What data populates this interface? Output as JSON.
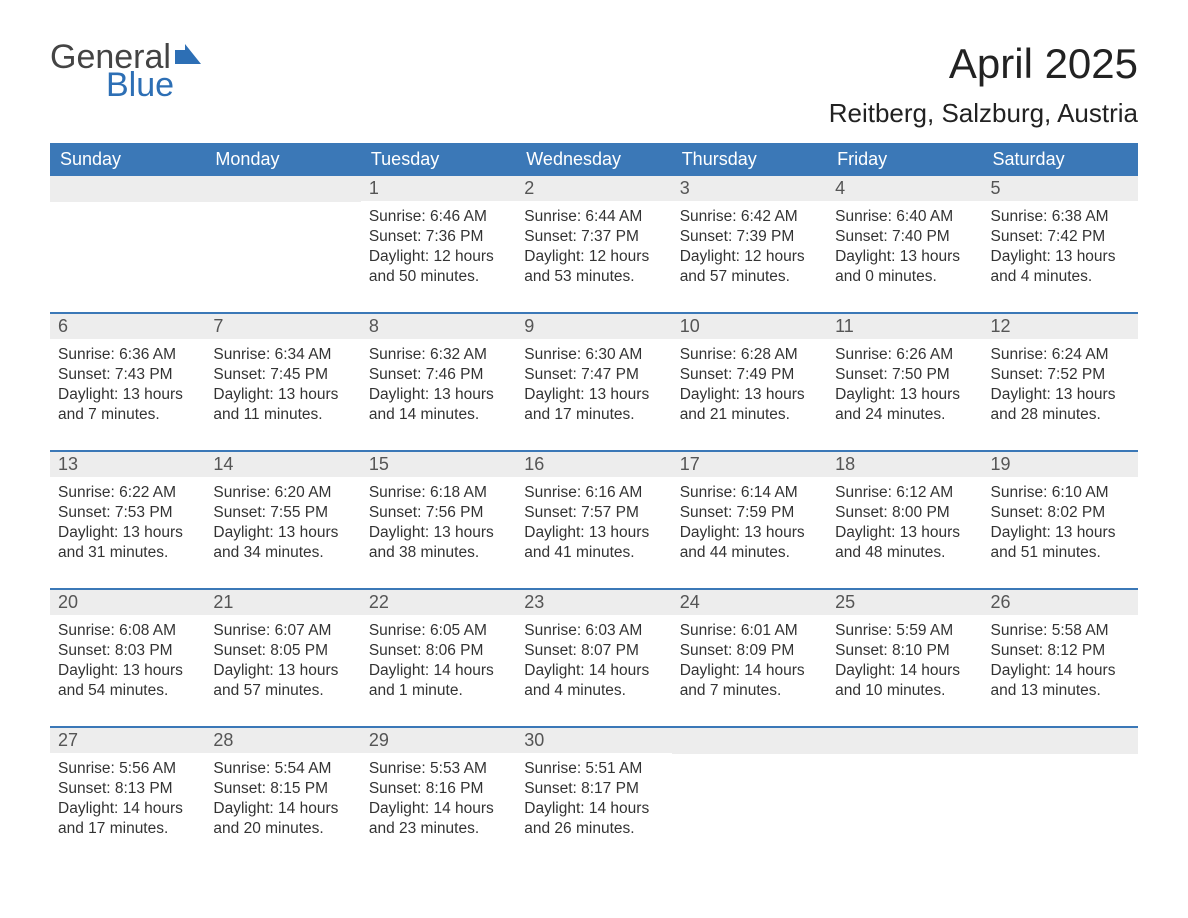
{
  "brand": {
    "text_general": "General",
    "text_blue": "Blue",
    "general_color": "#444444",
    "blue_color": "#2d6fb5",
    "flag_color": "#2d6fb5"
  },
  "title": {
    "month": "April 2025",
    "location": "Reitberg, Salzburg, Austria",
    "month_fontsize": 42,
    "location_fontsize": 26
  },
  "colors": {
    "header_bg": "#3b78b7",
    "header_text": "#ffffff",
    "daynum_bg": "#ededed",
    "daynum_text": "#555555",
    "body_text": "#333333",
    "row_border": "#3b78b7",
    "page_bg": "#ffffff"
  },
  "day_headers": [
    "Sunday",
    "Monday",
    "Tuesday",
    "Wednesday",
    "Thursday",
    "Friday",
    "Saturday"
  ],
  "weeks": [
    [
      {
        "num": "",
        "sunrise": "",
        "sunset": "",
        "daylight": ""
      },
      {
        "num": "",
        "sunrise": "",
        "sunset": "",
        "daylight": ""
      },
      {
        "num": "1",
        "sunrise": "Sunrise: 6:46 AM",
        "sunset": "Sunset: 7:36 PM",
        "daylight": "Daylight: 12 hours and 50 minutes."
      },
      {
        "num": "2",
        "sunrise": "Sunrise: 6:44 AM",
        "sunset": "Sunset: 7:37 PM",
        "daylight": "Daylight: 12 hours and 53 minutes."
      },
      {
        "num": "3",
        "sunrise": "Sunrise: 6:42 AM",
        "sunset": "Sunset: 7:39 PM",
        "daylight": "Daylight: 12 hours and 57 minutes."
      },
      {
        "num": "4",
        "sunrise": "Sunrise: 6:40 AM",
        "sunset": "Sunset: 7:40 PM",
        "daylight": "Daylight: 13 hours and 0 minutes."
      },
      {
        "num": "5",
        "sunrise": "Sunrise: 6:38 AM",
        "sunset": "Sunset: 7:42 PM",
        "daylight": "Daylight: 13 hours and 4 minutes."
      }
    ],
    [
      {
        "num": "6",
        "sunrise": "Sunrise: 6:36 AM",
        "sunset": "Sunset: 7:43 PM",
        "daylight": "Daylight: 13 hours and 7 minutes."
      },
      {
        "num": "7",
        "sunrise": "Sunrise: 6:34 AM",
        "sunset": "Sunset: 7:45 PM",
        "daylight": "Daylight: 13 hours and 11 minutes."
      },
      {
        "num": "8",
        "sunrise": "Sunrise: 6:32 AM",
        "sunset": "Sunset: 7:46 PM",
        "daylight": "Daylight: 13 hours and 14 minutes."
      },
      {
        "num": "9",
        "sunrise": "Sunrise: 6:30 AM",
        "sunset": "Sunset: 7:47 PM",
        "daylight": "Daylight: 13 hours and 17 minutes."
      },
      {
        "num": "10",
        "sunrise": "Sunrise: 6:28 AM",
        "sunset": "Sunset: 7:49 PM",
        "daylight": "Daylight: 13 hours and 21 minutes."
      },
      {
        "num": "11",
        "sunrise": "Sunrise: 6:26 AM",
        "sunset": "Sunset: 7:50 PM",
        "daylight": "Daylight: 13 hours and 24 minutes."
      },
      {
        "num": "12",
        "sunrise": "Sunrise: 6:24 AM",
        "sunset": "Sunset: 7:52 PM",
        "daylight": "Daylight: 13 hours and 28 minutes."
      }
    ],
    [
      {
        "num": "13",
        "sunrise": "Sunrise: 6:22 AM",
        "sunset": "Sunset: 7:53 PM",
        "daylight": "Daylight: 13 hours and 31 minutes."
      },
      {
        "num": "14",
        "sunrise": "Sunrise: 6:20 AM",
        "sunset": "Sunset: 7:55 PM",
        "daylight": "Daylight: 13 hours and 34 minutes."
      },
      {
        "num": "15",
        "sunrise": "Sunrise: 6:18 AM",
        "sunset": "Sunset: 7:56 PM",
        "daylight": "Daylight: 13 hours and 38 minutes."
      },
      {
        "num": "16",
        "sunrise": "Sunrise: 6:16 AM",
        "sunset": "Sunset: 7:57 PM",
        "daylight": "Daylight: 13 hours and 41 minutes."
      },
      {
        "num": "17",
        "sunrise": "Sunrise: 6:14 AM",
        "sunset": "Sunset: 7:59 PM",
        "daylight": "Daylight: 13 hours and 44 minutes."
      },
      {
        "num": "18",
        "sunrise": "Sunrise: 6:12 AM",
        "sunset": "Sunset: 8:00 PM",
        "daylight": "Daylight: 13 hours and 48 minutes."
      },
      {
        "num": "19",
        "sunrise": "Sunrise: 6:10 AM",
        "sunset": "Sunset: 8:02 PM",
        "daylight": "Daylight: 13 hours and 51 minutes."
      }
    ],
    [
      {
        "num": "20",
        "sunrise": "Sunrise: 6:08 AM",
        "sunset": "Sunset: 8:03 PM",
        "daylight": "Daylight: 13 hours and 54 minutes."
      },
      {
        "num": "21",
        "sunrise": "Sunrise: 6:07 AM",
        "sunset": "Sunset: 8:05 PM",
        "daylight": "Daylight: 13 hours and 57 minutes."
      },
      {
        "num": "22",
        "sunrise": "Sunrise: 6:05 AM",
        "sunset": "Sunset: 8:06 PM",
        "daylight": "Daylight: 14 hours and 1 minute."
      },
      {
        "num": "23",
        "sunrise": "Sunrise: 6:03 AM",
        "sunset": "Sunset: 8:07 PM",
        "daylight": "Daylight: 14 hours and 4 minutes."
      },
      {
        "num": "24",
        "sunrise": "Sunrise: 6:01 AM",
        "sunset": "Sunset: 8:09 PM",
        "daylight": "Daylight: 14 hours and 7 minutes."
      },
      {
        "num": "25",
        "sunrise": "Sunrise: 5:59 AM",
        "sunset": "Sunset: 8:10 PM",
        "daylight": "Daylight: 14 hours and 10 minutes."
      },
      {
        "num": "26",
        "sunrise": "Sunrise: 5:58 AM",
        "sunset": "Sunset: 8:12 PM",
        "daylight": "Daylight: 14 hours and 13 minutes."
      }
    ],
    [
      {
        "num": "27",
        "sunrise": "Sunrise: 5:56 AM",
        "sunset": "Sunset: 8:13 PM",
        "daylight": "Daylight: 14 hours and 17 minutes."
      },
      {
        "num": "28",
        "sunrise": "Sunrise: 5:54 AM",
        "sunset": "Sunset: 8:15 PM",
        "daylight": "Daylight: 14 hours and 20 minutes."
      },
      {
        "num": "29",
        "sunrise": "Sunrise: 5:53 AM",
        "sunset": "Sunset: 8:16 PM",
        "daylight": "Daylight: 14 hours and 23 minutes."
      },
      {
        "num": "30",
        "sunrise": "Sunrise: 5:51 AM",
        "sunset": "Sunset: 8:17 PM",
        "daylight": "Daylight: 14 hours and 26 minutes."
      },
      {
        "num": "",
        "sunrise": "",
        "sunset": "",
        "daylight": ""
      },
      {
        "num": "",
        "sunrise": "",
        "sunset": "",
        "daylight": ""
      },
      {
        "num": "",
        "sunrise": "",
        "sunset": "",
        "daylight": ""
      }
    ]
  ]
}
